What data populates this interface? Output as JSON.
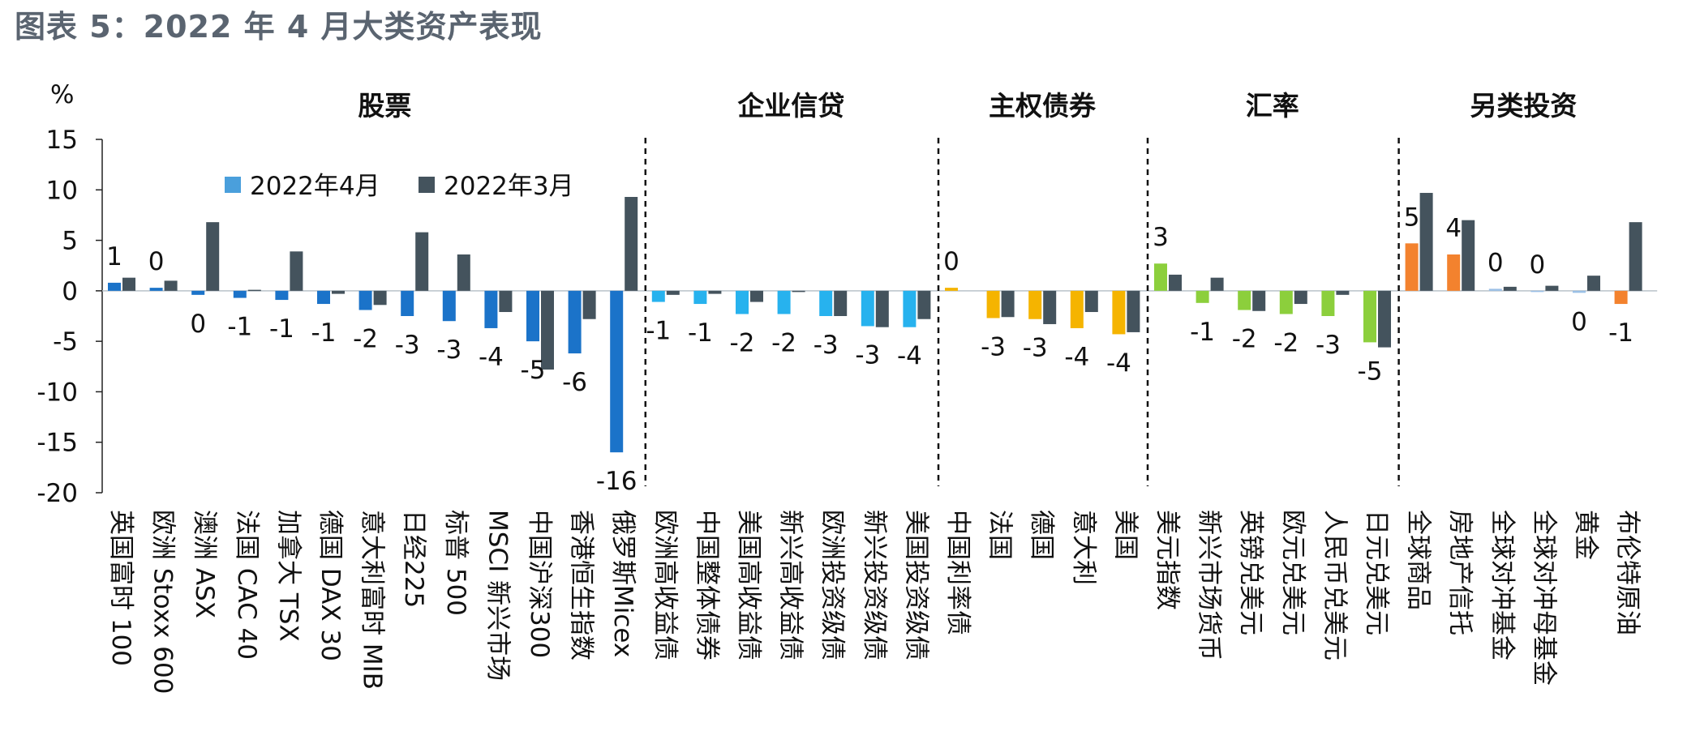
{
  "title": "图表 5：2022 年 4 月大类资产表现",
  "chart_data": {
    "type": "bar",
    "title": "图表 5：2022 年 4 月大类资产表现",
    "ylabel": "%",
    "ylim": [
      -20,
      15
    ],
    "yticks": [
      15,
      10,
      5,
      0,
      -5,
      -10,
      -15,
      -20
    ],
    "legend": {
      "position": "top-left",
      "entries": [
        "2022年4月",
        "2022年3月"
      ]
    },
    "series_names": [
      "2022年4月",
      "2022年3月"
    ],
    "groups": [
      {
        "name": "股票",
        "start": 0,
        "end": 13
      },
      {
        "name": "企业信贷",
        "start": 13,
        "end": 20
      },
      {
        "name": "主权债券",
        "start": 20,
        "end": 25
      },
      {
        "name": "汇率",
        "start": 25,
        "end": 31
      },
      {
        "name": "另类投资",
        "start": 31,
        "end": 37
      }
    ],
    "colors": {
      "march": "#44535d",
      "legend_april": "#4a9fdc",
      "股票": "#1b73c9",
      "企业信贷": "#27b2ee",
      "主权债券": "#f5b400",
      "汇率": "#8ccf3c",
      "另类投资": "#f3822e",
      "另类投资_hedge": "#9bc0e6"
    },
    "categories": [
      "英国富时 100",
      "欧洲 Stoxx 600",
      "澳洲 ASX",
      "法国 CAC 40",
      "加拿大 TSX",
      "德国 DAX 30",
      "意大利富时 MIB",
      "日经225",
      "标普 500",
      "MSCI 新兴市场",
      "中国沪深300",
      "香港恒生指数",
      "俄罗斯Micex",
      "欧洲高收益债",
      "中国整体债券",
      "美国高收益债",
      "新兴高收益债",
      "欧洲投资级债",
      "新兴投资级债",
      "美国投资级债",
      "中国利率债",
      "法国",
      "德国",
      "意大利",
      "美国",
      "美元指数",
      "新兴市场货币",
      "英镑兑美元",
      "欧元兑美元",
      "人民币兑美元",
      "日元兑美元",
      "全球商品",
      "房地产信托",
      "全球对冲基金",
      "全球对冲母基金",
      "黄金",
      "布伦特原油"
    ],
    "series": [
      {
        "name": "2022年4月",
        "values": [
          0.8,
          0.3,
          -0.4,
          -0.7,
          -0.9,
          -1.3,
          -1.9,
          -2.5,
          -3.0,
          -3.7,
          -5.0,
          -6.2,
          -16.0,
          -1.1,
          -1.3,
          -2.3,
          -2.3,
          -2.5,
          -3.5,
          -3.6,
          0.3,
          -2.7,
          -2.8,
          -3.7,
          -4.3,
          2.7,
          -1.2,
          -1.9,
          -2.3,
          -2.5,
          -5.1,
          4.7,
          3.6,
          0.2,
          0.0,
          -0.2,
          -1.3
        ]
      },
      {
        "name": "2022年3月",
        "values": [
          1.3,
          1.0,
          6.8,
          0.1,
          3.9,
          -0.3,
          -1.4,
          5.8,
          3.6,
          -2.1,
          -7.8,
          -2.8,
          9.3,
          -0.4,
          -0.3,
          -1.1,
          -0.1,
          -2.5,
          -3.6,
          -2.8,
          null,
          -2.6,
          -3.3,
          -2.1,
          -4.1,
          1.6,
          1.3,
          -2.0,
          -1.3,
          -0.4,
          -5.6,
          9.7,
          7.0,
          0.4,
          0.5,
          1.5,
          6.8
        ]
      }
    ],
    "data_labels": [
      "1",
      "0",
      "0",
      "-1",
      "-1",
      "-1",
      "-2",
      "-3",
      "-3",
      "-4",
      "-5",
      "-6",
      "-16",
      "-1",
      "-1",
      "-2",
      "-2",
      "-3",
      "-3",
      "-4",
      "0",
      "-3",
      "-3",
      "-4",
      "-4",
      "3",
      "-1",
      "-2",
      "-2",
      "-3",
      "-5",
      "5",
      "4",
      "0",
      "0",
      "0",
      "-1"
    ]
  }
}
